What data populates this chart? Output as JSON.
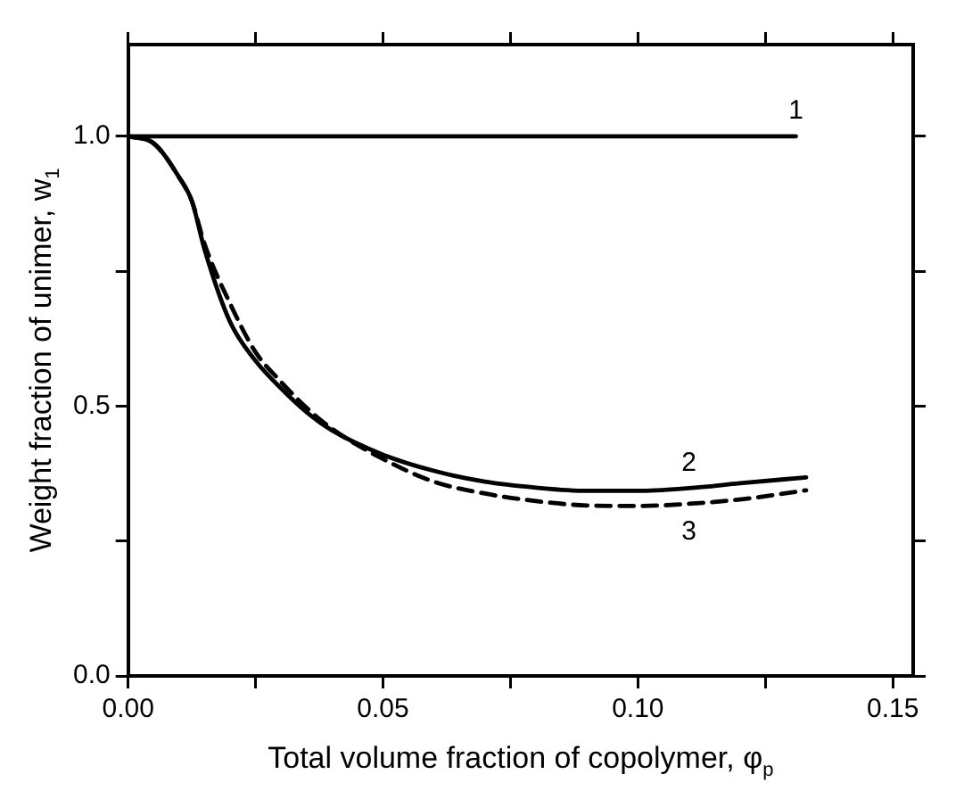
{
  "chart_data": {
    "type": "line",
    "xlabel": "Total volume fraction of copolymer, φ$_{p}$",
    "ylabel": "Weight fraction of unimer, w$_{1}$",
    "xlim": [
      0,
      0.154
    ],
    "ylim": [
      0,
      1.17
    ],
    "xticks": [
      {
        "value": 0,
        "label": "0.00"
      },
      {
        "value": 0.025,
        "label": null
      },
      {
        "value": 0.05,
        "label": "0.05"
      },
      {
        "value": 0.075,
        "label": null
      },
      {
        "value": 0.1,
        "label": "0.10"
      },
      {
        "value": 0.125,
        "label": null
      },
      {
        "value": 0.15,
        "label": "0.15"
      }
    ],
    "yticks": [
      {
        "value": 0,
        "label": "0.0"
      },
      {
        "value": 0.25,
        "label": null
      },
      {
        "value": 0.5,
        "label": "0.5"
      },
      {
        "value": 0.75,
        "label": null
      },
      {
        "value": 1,
        "label": "1.0"
      }
    ],
    "grid": false,
    "marker": "none",
    "series": [
      {
        "name": "1",
        "color": "#000000",
        "line_style": "solid",
        "x": [
          0,
          0.131
        ],
        "values": [
          1,
          1
        ]
      },
      {
        "name": "2",
        "color": "#000000",
        "line_style": "solid",
        "x": [
          0,
          0.005,
          0.01,
          0.0125,
          0.015,
          0.02,
          0.025,
          0.03,
          0.035,
          0.04,
          0.05,
          0.06,
          0.07,
          0.08,
          0.09,
          0.1,
          0.11,
          0.12,
          0.133
        ],
        "values": [
          1,
          0.987,
          0.924,
          0.88,
          0.79,
          0.656,
          0.584,
          0.533,
          0.489,
          0.455,
          0.41,
          0.38,
          0.36,
          0.349,
          0.343,
          0.343,
          0.348,
          0.357,
          0.368
        ]
      },
      {
        "name": "3",
        "color": "#000000",
        "line_style": "dashed",
        "x": [
          0,
          0.005,
          0.01,
          0.0125,
          0.015,
          0.02,
          0.025,
          0.03,
          0.035,
          0.04,
          0.05,
          0.06,
          0.07,
          0.08,
          0.09,
          0.1,
          0.11,
          0.12,
          0.133
        ],
        "values": [
          1,
          0.987,
          0.924,
          0.88,
          0.8,
          0.69,
          0.6,
          0.545,
          0.497,
          0.458,
          0.402,
          0.36,
          0.338,
          0.324,
          0.316,
          0.315,
          0.319,
          0.327,
          0.344
        ]
      }
    ]
  }
}
